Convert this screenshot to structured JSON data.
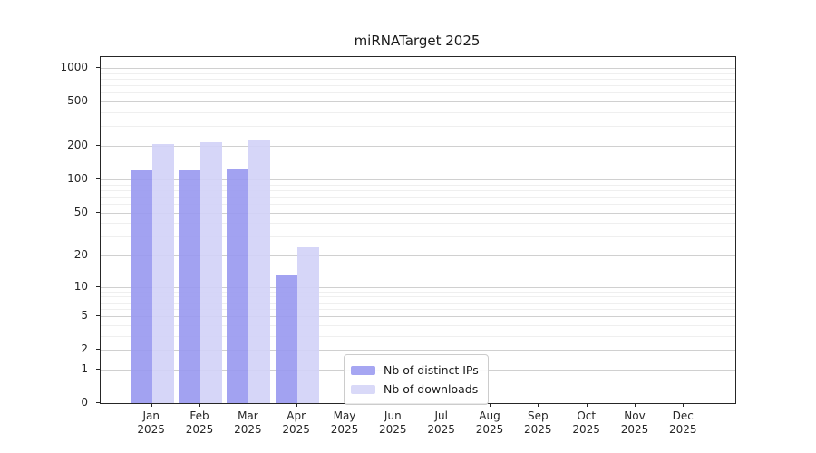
{
  "chart_data": {
    "type": "bar",
    "title": "miRNATarget 2025",
    "categories": [
      "Jan 2025",
      "Feb 2025",
      "Mar 2025",
      "Apr 2025",
      "May 2025",
      "Jun 2025",
      "Jul 2025",
      "Aug 2025",
      "Sep 2025",
      "Oct 2025",
      "Nov 2025",
      "Dec 2025"
    ],
    "x_tick_line1": [
      "Jan",
      "Feb",
      "Mar",
      "Apr",
      "May",
      "Jun",
      "Jul",
      "Aug",
      "Sep",
      "Oct",
      "Nov",
      "Dec"
    ],
    "x_tick_line2": "2025",
    "series": [
      {
        "name": "Nb of distinct IPs",
        "color": "#9898f0",
        "legend_color": "#a6a6f2",
        "values": [
          120,
          121,
          125,
          13,
          0,
          0,
          0,
          0,
          0,
          0,
          0,
          0
        ]
      },
      {
        "name": "Nb of downloads",
        "color": "#d2d2f7",
        "legend_color": "#d9d9f8",
        "values": [
          207,
          217,
          228,
          24,
          0,
          0,
          0,
          0,
          0,
          0,
          0,
          0
        ]
      }
    ],
    "y_ticks": [
      0,
      1,
      2,
      5,
      10,
      20,
      50,
      100,
      200,
      500,
      1000
    ],
    "y_minor_ticks": [
      3,
      4,
      6,
      7,
      8,
      9,
      30,
      40,
      60,
      70,
      80,
      90,
      300,
      400,
      600,
      700,
      800,
      900
    ],
    "y_scale": "log10(1+v)",
    "ylim": [
      0,
      1100
    ],
    "grid": true,
    "legend_position": "lower-center",
    "colors": {
      "axis": "#262626",
      "grid_major": "#d0d0d0",
      "grid_minor": "#efefef",
      "background": "#ffffff"
    }
  }
}
